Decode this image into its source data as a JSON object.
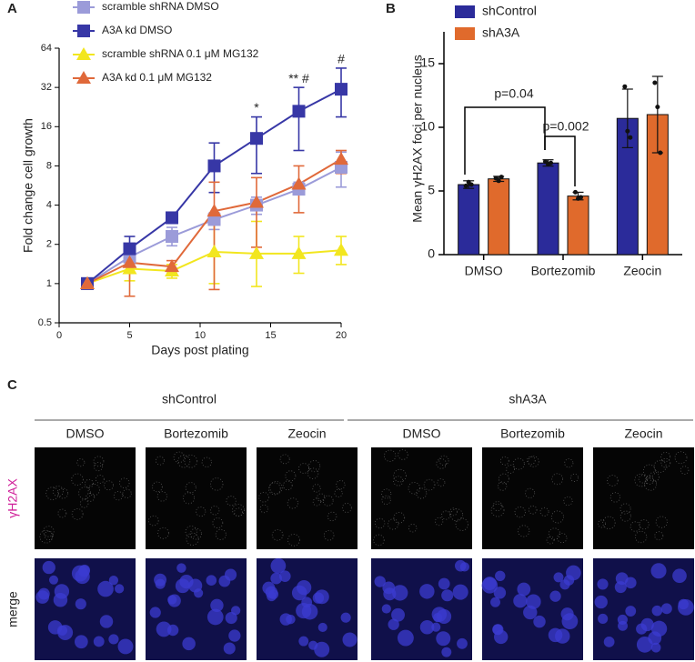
{
  "panels": [
    "A",
    "B",
    "C"
  ],
  "chart_data": [
    {
      "type": "line",
      "log_base": 2,
      "x": [
        2,
        5,
        8,
        11,
        14,
        17,
        20
      ],
      "xlim": [
        0,
        20
      ],
      "xticks": [
        0,
        5,
        10,
        15,
        20
      ],
      "ylim": [
        0.5,
        64
      ],
      "yticks": [
        0.5,
        1,
        2,
        4,
        8,
        16,
        32,
        64
      ],
      "xlabel": "Days post plating",
      "ylabel": "Fold change cell growth",
      "series": [
        {
          "name": "scramble shRNA DMSO",
          "color": "#9b9bd9",
          "marker": "square",
          "values": [
            1,
            1.6,
            2.3,
            3.1,
            4.0,
            5.3,
            7.8
          ],
          "error_low": [
            1,
            1.4,
            1.95,
            2.6,
            3.4,
            4.8,
            5.5
          ],
          "error_high": [
            1,
            1.8,
            2.7,
            3.5,
            4.6,
            6.0,
            10.2
          ]
        },
        {
          "name": "A3A kd DMSO",
          "color": "#3737a6",
          "marker": "square",
          "values": [
            1,
            1.85,
            3.2,
            8,
            13,
            21,
            31
          ],
          "error_low": [
            1,
            1.5,
            2.9,
            5.0,
            7,
            10.5,
            19
          ],
          "error_high": [
            1,
            2.3,
            3.5,
            12,
            19,
            32,
            45
          ]
        },
        {
          "name": "scramble shRNA 0.1 μM MG132",
          "color": "#f2e61f",
          "marker": "triangle",
          "values": [
            1,
            1.3,
            1.25,
            1.75,
            1.7,
            1.7,
            1.8
          ],
          "error_low": [
            1,
            1.05,
            1.1,
            1.0,
            0.95,
            1.2,
            1.4
          ],
          "error_high": [
            1,
            1.5,
            1.4,
            3.0,
            3.0,
            2.3,
            2.3
          ]
        },
        {
          "name": "A3A kd 0.1 μM MG132",
          "color": "#e0693a",
          "marker": "triangle",
          "values": [
            1,
            1.45,
            1.35,
            3.6,
            4.2,
            5.8,
            9
          ],
          "error_low": [
            1,
            0.8,
            1.2,
            0.9,
            1.9,
            3.5,
            7
          ],
          "error_high": [
            1,
            1.6,
            1.5,
            6.0,
            6.5,
            8,
            10.5
          ]
        }
      ],
      "annotations": [
        {
          "text": "*",
          "x": 14,
          "y": 22
        },
        {
          "text": "** #",
          "x": 17,
          "y": 37
        },
        {
          "text": "#",
          "x": 20,
          "y": 52
        }
      ]
    },
    {
      "type": "bar",
      "categories": [
        "DMSO",
        "Bortezomib",
        "Zeocin"
      ],
      "ylim": [
        0,
        17.5
      ],
      "yticks": [
        0,
        5,
        10,
        15
      ],
      "ylabel": "Mean γH2AX foci per nucleus",
      "series": [
        {
          "name": "shControl",
          "color": "#2b2b9a",
          "values": [
            5.5,
            7.2,
            10.7
          ],
          "errors": [
            0.3,
            0.25,
            2.3
          ],
          "points": [
            [
              5.4,
              5.7,
              5.5
            ],
            [
              7.3,
              7.1,
              7.2
            ],
            [
              13.2,
              9.7,
              9.2
            ]
          ]
        },
        {
          "name": "shA3A",
          "color": "#e06a2c",
          "values": [
            5.95,
            4.6,
            11.0
          ],
          "errors": [
            0.2,
            0.3,
            3.0
          ],
          "points": [
            [
              6.0,
              5.8,
              6.1
            ],
            [
              4.9,
              4.4,
              4.5
            ],
            [
              13.5,
              11.6,
              8.0
            ]
          ]
        }
      ],
      "annotations": [
        {
          "text": "p=0.04"
        },
        {
          "text": "p=0.002"
        }
      ]
    }
  ],
  "panel_c": {
    "groups": [
      "shControl",
      "shA3A"
    ],
    "conditions": [
      "DMSO",
      "Bortezomib",
      "Zeocin",
      "DMSO",
      "Bortezomib",
      "Zeocin"
    ],
    "rows": [
      "γH2AX",
      "merge"
    ]
  }
}
